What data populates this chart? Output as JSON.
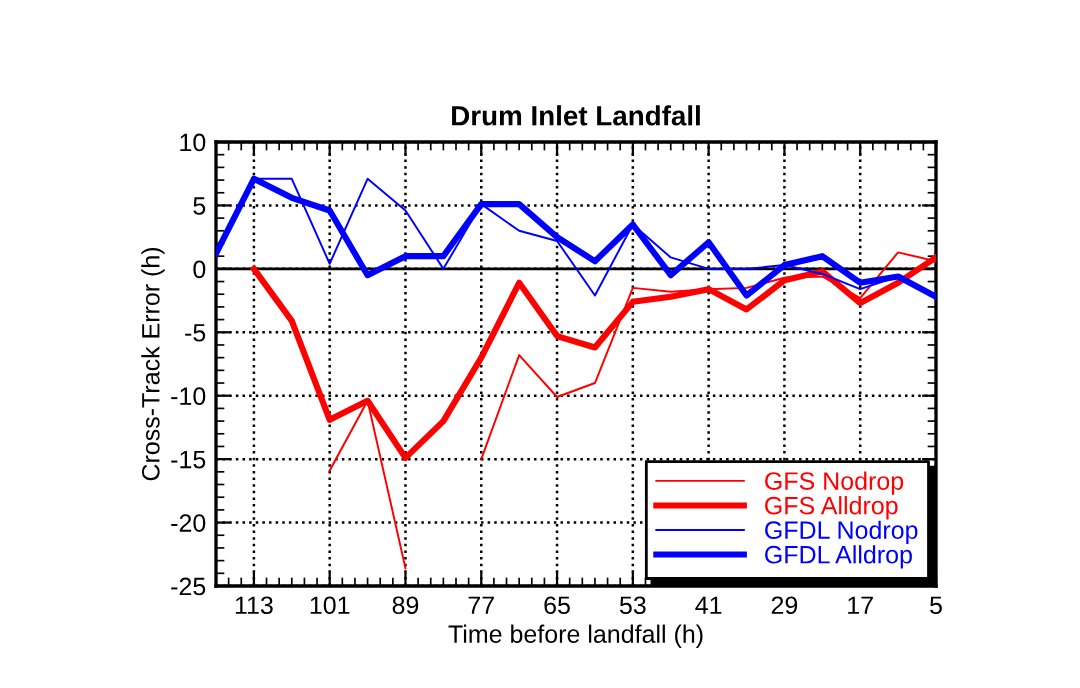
{
  "chart_data": {
    "type": "line",
    "title": "Drum Inlet Landfall",
    "xlabel": "Time before landfall (h)",
    "ylabel": "Cross-Track Error (h)",
    "x": [
      119,
      113,
      107,
      101,
      95,
      89,
      83,
      77,
      71,
      65,
      59,
      53,
      47,
      41,
      35,
      29,
      23,
      17,
      11,
      5
    ],
    "series": [
      {
        "name": "GFS Nodrop",
        "color": "#ff0000",
        "values": [
          null,
          null,
          null,
          -15.9,
          -10.4,
          -23.6,
          null,
          -15.0,
          -6.8,
          -10.1,
          -9.0,
          -1.5,
          -1.8,
          -1.6,
          -1.5,
          -0.7,
          -0.6,
          -2.3,
          1.3,
          0.6
        ]
      },
      {
        "name": "GFS Alldrop",
        "color": "#ff0000",
        "values": [
          null,
          0,
          -4.1,
          -11.9,
          -10.4,
          -14.9,
          -12.0,
          -7.0,
          -1.1,
          -5.3,
          -6.2,
          -2.6,
          -2.2,
          -1.6,
          -3.2,
          -0.9,
          -0.2,
          -2.7,
          -1.1,
          0.9
        ]
      },
      {
        "name": "GFDL Nodrop",
        "color": "#0000ff",
        "values": [
          1.2,
          7.1,
          7.1,
          0.4,
          7.1,
          4.6,
          0,
          5.1,
          3.0,
          2.2,
          -2.1,
          3.5,
          0.9,
          0,
          0,
          0.3,
          -0.4,
          -1.6,
          -0.6,
          -2.2
        ]
      },
      {
        "name": "GFDL Alldrop",
        "color": "#0000ff",
        "values": [
          1.2,
          7.1,
          5.6,
          4.6,
          -0.5,
          1.0,
          1.0,
          5.1,
          5.1,
          2.5,
          0.6,
          3.5,
          -0.5,
          2.1,
          -2.1,
          0.3,
          1.0,
          -1.1,
          -0.6,
          -2.2
        ]
      }
    ],
    "xlim": [
      119,
      5
    ],
    "xticks": [
      113,
      101,
      89,
      77,
      65,
      53,
      41,
      29,
      17,
      5
    ],
    "ylim": [
      -25,
      10
    ],
    "yticks": [
      -25,
      -20,
      -15,
      -10,
      -5,
      0,
      5,
      10
    ],
    "ref_lines": [
      {
        "axis": "y",
        "value": 0,
        "color": "#000000",
        "line_style": "solid"
      }
    ],
    "grid": true,
    "legend": "bottom right",
    "marker": "none",
    "line_style": "solid"
  }
}
